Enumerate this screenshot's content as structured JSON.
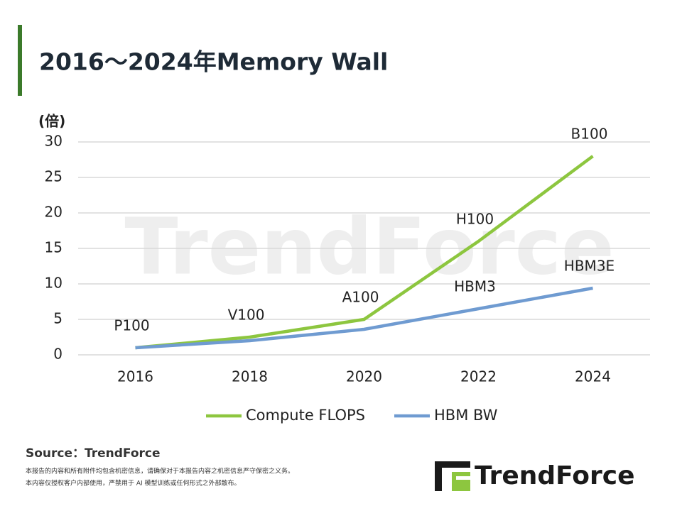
{
  "chart_data": {
    "type": "line",
    "title": "2016～2024年Memory Wall",
    "y_label": "(倍)",
    "categories": [
      "2016",
      "2018",
      "2020",
      "2022",
      "2024"
    ],
    "series": [
      {
        "name": "Compute FLOPS",
        "color": "#8dc63f",
        "values": [
          1,
          2.5,
          5,
          16,
          28
        ],
        "point_labels": [
          "P100",
          "V100",
          "A100",
          "H100",
          "B100"
        ]
      },
      {
        "name": "HBM BW",
        "color": "#6f9bd1",
        "values": [
          1,
          2,
          3.6,
          6.5,
          9.4
        ],
        "point_labels": [
          null,
          null,
          null,
          "HBM3",
          "HBM3E"
        ]
      }
    ],
    "ylim": [
      0,
      30
    ],
    "yticks": [
      0,
      5,
      10,
      15,
      20,
      25,
      30
    ],
    "grid": true,
    "legend": "bottom"
  },
  "watermark": "TrendForce",
  "source": "Source：TrendForce",
  "disclaimer": [
    "本报告的内容和所有附件均包含机密信息，请确保对于本报告内容之机密信息严守保密之义务。",
    "本内容仅授权客户内部使用，严禁用于 AI 模型训练或任何形式之外部散布。"
  ],
  "logo": "TrendForce"
}
